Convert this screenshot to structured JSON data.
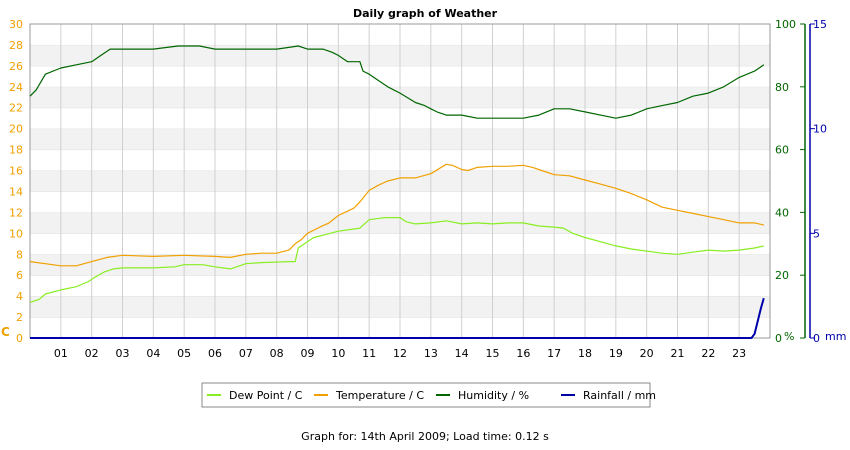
{
  "chart_data": {
    "type": "line",
    "title": "Daily graph of Weather",
    "x_unit": "hour of day",
    "x_ticks": [
      "01",
      "02",
      "03",
      "04",
      "05",
      "06",
      "07",
      "08",
      "09",
      "10",
      "11",
      "12",
      "13",
      "14",
      "15",
      "16",
      "17",
      "18",
      "19",
      "20",
      "21",
      "22",
      "23"
    ],
    "xlim": [
      0,
      24
    ],
    "axes": {
      "temperature": {
        "ylim": [
          0,
          30
        ],
        "ticks": [
          "0",
          "2",
          "4",
          "6",
          "8",
          "10",
          "12",
          "14",
          "16",
          "18",
          "20",
          "22",
          "24",
          "26",
          "28",
          "30"
        ],
        "unit": "C",
        "color": "#f0a000"
      },
      "humidity": {
        "ylim": [
          0,
          100
        ],
        "ticks": [
          "0",
          "20",
          "40",
          "60",
          "80",
          "100"
        ],
        "unit": "%",
        "color": "#006600"
      },
      "rainfall": {
        "ylim": [
          0,
          15
        ],
        "ticks": [
          "0",
          "5",
          "10",
          "15"
        ],
        "unit": "mm",
        "color": "#0000aa"
      }
    },
    "grid": "horizontal bands",
    "legend_position": "bottom-center",
    "series": [
      {
        "name": "Dew Point / C",
        "axis": "temperature",
        "color": "#88ee22",
        "points": [
          [
            0,
            3.4
          ],
          [
            0.3,
            3.7
          ],
          [
            0.5,
            4.2
          ],
          [
            1,
            4.6
          ],
          [
            1.5,
            4.9
          ],
          [
            1.9,
            5.4
          ],
          [
            2.1,
            5.8
          ],
          [
            2.4,
            6.3
          ],
          [
            2.7,
            6.6
          ],
          [
            3,
            6.7
          ],
          [
            4,
            6.7
          ],
          [
            4.7,
            6.8
          ],
          [
            5,
            7.0
          ],
          [
            5.6,
            7.0
          ],
          [
            6,
            6.8
          ],
          [
            6.5,
            6.6
          ],
          [
            7,
            7.1
          ],
          [
            7.5,
            7.2
          ],
          [
            8.4,
            7.3
          ],
          [
            8.6,
            7.3
          ],
          [
            8.7,
            8.6
          ],
          [
            8.9,
            9.0
          ],
          [
            9.2,
            9.6
          ],
          [
            9.6,
            9.9
          ],
          [
            10,
            10.2
          ],
          [
            10.7,
            10.5
          ],
          [
            11,
            11.3
          ],
          [
            11.5,
            11.5
          ],
          [
            12,
            11.5
          ],
          [
            12.2,
            11.1
          ],
          [
            12.5,
            10.9
          ],
          [
            13,
            11.0
          ],
          [
            13.5,
            11.2
          ],
          [
            14,
            10.9
          ],
          [
            14.5,
            11.0
          ],
          [
            15,
            10.9
          ],
          [
            15.5,
            11.0
          ],
          [
            16,
            11.0
          ],
          [
            16.5,
            10.7
          ],
          [
            17,
            10.6
          ],
          [
            17.3,
            10.5
          ],
          [
            17.6,
            10.0
          ],
          [
            18,
            9.6
          ],
          [
            18.5,
            9.2
          ],
          [
            19,
            8.8
          ],
          [
            19.5,
            8.5
          ],
          [
            20,
            8.3
          ],
          [
            20.5,
            8.1
          ],
          [
            21,
            8.0
          ],
          [
            21.5,
            8.2
          ],
          [
            22,
            8.4
          ],
          [
            22.5,
            8.3
          ],
          [
            23,
            8.4
          ],
          [
            23.5,
            8.6
          ],
          [
            23.8,
            8.8
          ]
        ]
      },
      {
        "name": "Temperature / C",
        "axis": "temperature",
        "color": "#f0a000",
        "points": [
          [
            0,
            7.3
          ],
          [
            0.5,
            7.1
          ],
          [
            1,
            6.9
          ],
          [
            1.5,
            6.9
          ],
          [
            2,
            7.3
          ],
          [
            2.5,
            7.7
          ],
          [
            3,
            7.9
          ],
          [
            4,
            7.8
          ],
          [
            5,
            7.9
          ],
          [
            6,
            7.8
          ],
          [
            6.5,
            7.7
          ],
          [
            7,
            8.0
          ],
          [
            7.5,
            8.1
          ],
          [
            8,
            8.1
          ],
          [
            8.4,
            8.4
          ],
          [
            8.6,
            9.0
          ],
          [
            8.8,
            9.4
          ],
          [
            9,
            10.0
          ],
          [
            9.4,
            10.6
          ],
          [
            9.7,
            11.0
          ],
          [
            10,
            11.7
          ],
          [
            10.5,
            12.4
          ],
          [
            10.7,
            13.0
          ],
          [
            11,
            14.1
          ],
          [
            11.3,
            14.6
          ],
          [
            11.6,
            15.0
          ],
          [
            12,
            15.3
          ],
          [
            12.5,
            15.3
          ],
          [
            13,
            15.7
          ],
          [
            13.5,
            16.6
          ],
          [
            13.7,
            16.5
          ],
          [
            14,
            16.1
          ],
          [
            14.2,
            16.0
          ],
          [
            14.5,
            16.3
          ],
          [
            15,
            16.4
          ],
          [
            15.5,
            16.4
          ],
          [
            16,
            16.5
          ],
          [
            16.3,
            16.3
          ],
          [
            16.6,
            16.0
          ],
          [
            17,
            15.6
          ],
          [
            17.5,
            15.5
          ],
          [
            18,
            15.1
          ],
          [
            18.5,
            14.7
          ],
          [
            19,
            14.3
          ],
          [
            19.5,
            13.8
          ],
          [
            20,
            13.2
          ],
          [
            20.5,
            12.5
          ],
          [
            21,
            12.2
          ],
          [
            21.5,
            11.9
          ],
          [
            22,
            11.6
          ],
          [
            22.5,
            11.3
          ],
          [
            23,
            11.0
          ],
          [
            23.5,
            11.0
          ],
          [
            23.8,
            10.8
          ]
        ]
      },
      {
        "name": "Humidity / %",
        "axis": "humidity",
        "color": "#006600",
        "points": [
          [
            0,
            77
          ],
          [
            0.2,
            79
          ],
          [
            0.5,
            84
          ],
          [
            1,
            86
          ],
          [
            1.5,
            87
          ],
          [
            2,
            88
          ],
          [
            2.3,
            90
          ],
          [
            2.6,
            92
          ],
          [
            3,
            92
          ],
          [
            3.5,
            92
          ],
          [
            4,
            92
          ],
          [
            4.8,
            93
          ],
          [
            5.5,
            93
          ],
          [
            6,
            92
          ],
          [
            7,
            92
          ],
          [
            7.5,
            92
          ],
          [
            8,
            92
          ],
          [
            8.7,
            93
          ],
          [
            9,
            92
          ],
          [
            9.5,
            92
          ],
          [
            9.8,
            91
          ],
          [
            10,
            90
          ],
          [
            10.3,
            88
          ],
          [
            10.7,
            88
          ],
          [
            10.8,
            85
          ],
          [
            11,
            84
          ],
          [
            11.3,
            82
          ],
          [
            11.6,
            80
          ],
          [
            12,
            78
          ],
          [
            12.5,
            75
          ],
          [
            12.8,
            74
          ],
          [
            13,
            73
          ],
          [
            13.2,
            72
          ],
          [
            13.5,
            71
          ],
          [
            14,
            71
          ],
          [
            14.5,
            70
          ],
          [
            15,
            70
          ],
          [
            15.5,
            70
          ],
          [
            16,
            70
          ],
          [
            16.5,
            71
          ],
          [
            17,
            73
          ],
          [
            17.5,
            73
          ],
          [
            18,
            72
          ],
          [
            18.5,
            71
          ],
          [
            19,
            70
          ],
          [
            19.5,
            71
          ],
          [
            20,
            73
          ],
          [
            20.5,
            74
          ],
          [
            21,
            75
          ],
          [
            21.5,
            77
          ],
          [
            22,
            78
          ],
          [
            22.5,
            80
          ],
          [
            23,
            83
          ],
          [
            23.5,
            85
          ],
          [
            23.8,
            87
          ]
        ]
      },
      {
        "name": "Rainfall / mm",
        "axis": "rainfall",
        "color": "#0000aa",
        "points": [
          [
            0,
            0
          ],
          [
            23.4,
            0
          ],
          [
            23.5,
            0.2
          ],
          [
            23.6,
            0.8
          ],
          [
            23.7,
            1.4
          ],
          [
            23.8,
            1.9
          ]
        ]
      }
    ]
  },
  "footer_text": "Graph for: 14th April 2009; Load time: 0.12 s"
}
